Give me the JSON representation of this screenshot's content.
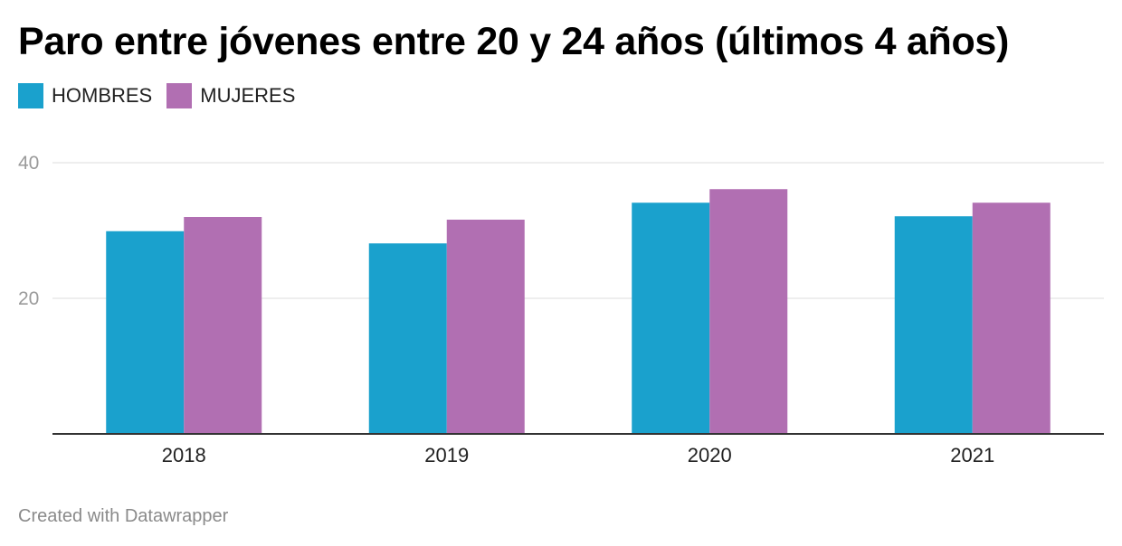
{
  "chart_data": {
    "type": "bar",
    "title": "Paro entre jóvenes entre 20 y 24 años (últimos 4 años)",
    "categories": [
      "2018",
      "2019",
      "2020",
      "2021"
    ],
    "series": [
      {
        "name": "HOMBRES",
        "color": "#1aa1cd",
        "values": [
          29.9,
          28.1,
          34.1,
          32.1
        ]
      },
      {
        "name": "MUJERES",
        "color": "#b16fb2",
        "values": [
          32.0,
          31.6,
          36.1,
          34.1
        ]
      }
    ],
    "yticks": [
      20,
      40
    ],
    "ylim": [
      0,
      40
    ],
    "grid": true,
    "legend_position": "top-left"
  },
  "footer": {
    "credit": "Created with Datawrapper"
  }
}
